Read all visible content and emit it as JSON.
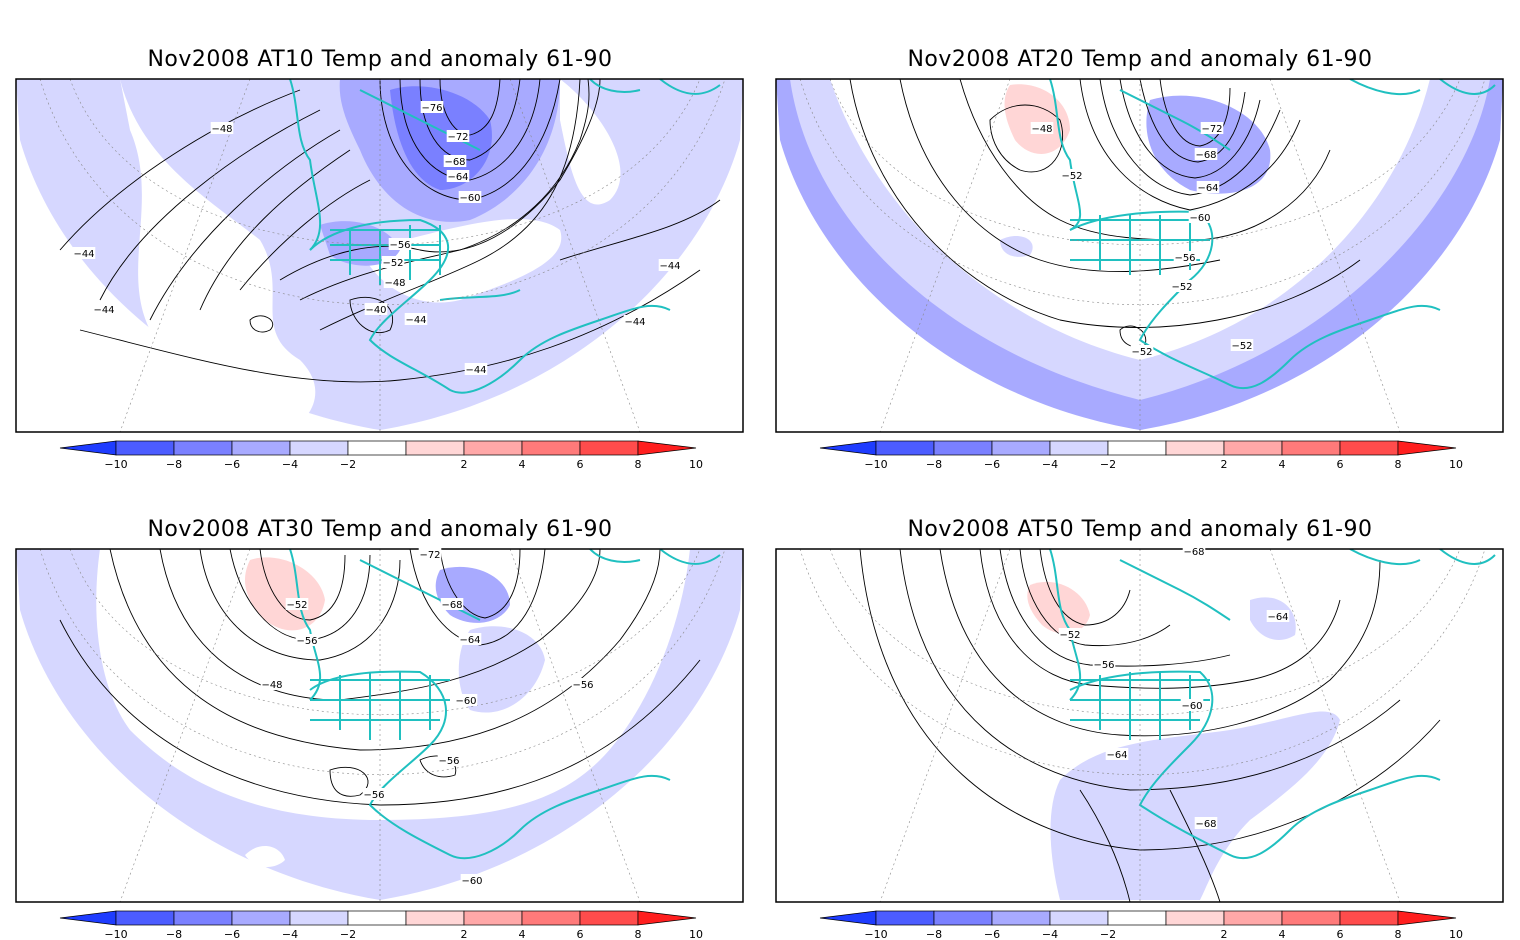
{
  "figure": {
    "panels": [
      {
        "title": "Nov2008 AT10 Temp and anomaly 61-90",
        "contour_labels": [
          "-76",
          "-72",
          "-68",
          "-64",
          "-60",
          "-56",
          "-52",
          "-48",
          "-48",
          "-44",
          "-44",
          "-44",
          "-44",
          "-44",
          "-40",
          "-44"
        ],
        "anomaly_shading": "mostly -2 to -4 with a -4 to -6 core over Hudson Bay / Baffin"
      },
      {
        "title": "Nov2008 AT20 Temp and anomaly 61-90",
        "contour_labels": [
          "-72",
          "-68",
          "-64",
          "-60",
          "-56",
          "-52",
          "-52",
          "-52",
          "-52",
          "-48"
        ],
        "anomaly_shading": "+2 to +4 over Alaska; -4 to -6 over Hudson Bay and a ring near the edge"
      },
      {
        "title": "Nov2008 AT30 Temp and anomaly 61-90",
        "contour_labels": [
          "-72",
          "-68",
          "-64",
          "-60",
          "-56",
          "-56",
          "-56",
          "-56",
          "-52",
          "-48",
          "-60"
        ],
        "anomaly_shading": "+2 to +4 over Alaska; -4 to -6 east of Hudson Bay; -2 to -4 in the south"
      },
      {
        "title": "Nov2008 AT50 Temp and anomaly 61-90",
        "contour_labels": [
          "-68",
          "-64",
          "-60",
          "-64",
          "-56",
          "-52",
          "-68"
        ],
        "anomaly_shading": "+2 to +4 over Alaska; -2 to -4 over the Atlantic and Gulf"
      }
    ],
    "colorbar": {
      "tick_labels": [
        "-10",
        "-8",
        "-6",
        "-4",
        "-2",
        "2",
        "4",
        "6",
        "8",
        "10"
      ],
      "colors": [
        "#1e3cff",
        "#4c5cff",
        "#7a80ff",
        "#a8aaff",
        "#d6d7ff",
        "#ffffff",
        "#ffd6d6",
        "#ffa8a8",
        "#ff7a7a",
        "#ff4c4c",
        "#ff1e1e"
      ]
    },
    "colors": {
      "coastline": "#20c0c0",
      "contour": "#000000",
      "anom_neg_2_4": "#d6d7ff",
      "anom_neg_4_6": "#a8aaff",
      "anom_neg_6_8": "#7a80ff",
      "anom_pos_2_4": "#ffd6d6"
    }
  }
}
